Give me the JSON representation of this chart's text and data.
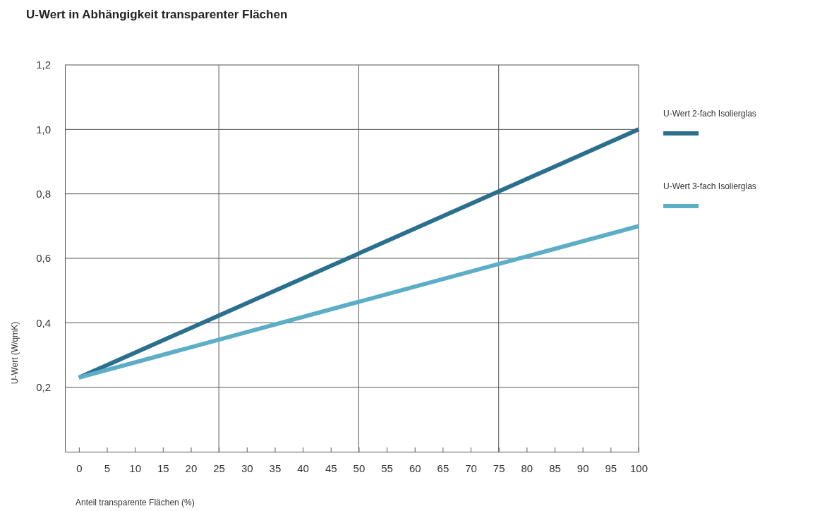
{
  "chart_data": {
    "type": "line",
    "title": "U-Wert in Abhängigkeit transparenter Flächen",
    "xlabel": "Anteil transparente Flächen (%)",
    "ylabel": "U-Wert (W/qmK)",
    "x": [
      0,
      100
    ],
    "series": [
      {
        "name": "U-Wert 2-fach Isolierglas",
        "color": "#2b6f8e",
        "values": [
          0.23,
          1.0
        ]
      },
      {
        "name": "U-Wert 3-fach Isolierglas",
        "color": "#5cadc6",
        "values": [
          0.23,
          0.7
        ]
      }
    ],
    "xlim": [
      -2.5,
      100
    ],
    "xticks": [
      0,
      5,
      10,
      15,
      20,
      25,
      30,
      35,
      40,
      45,
      50,
      55,
      60,
      65,
      70,
      75,
      80,
      85,
      90,
      95,
      100
    ],
    "ylim": [
      0,
      1.2
    ],
    "yticks": [
      {
        "value": 0.2,
        "label": "0,2"
      },
      {
        "value": 0.4,
        "label": "0,4"
      },
      {
        "value": 0.6,
        "label": "0,6"
      },
      {
        "value": 0.8,
        "label": "0,8"
      },
      {
        "value": 1.0,
        "label": "1,0"
      },
      {
        "value": 1.2,
        "label": "1,2"
      }
    ],
    "grid": "y",
    "legend": "right",
    "marker": "none",
    "line_style": "solid",
    "ref_lines": [
      {
        "axis": "x",
        "value": 25,
        "color": "#555555"
      },
      {
        "axis": "x",
        "value": 50,
        "color": "#555555"
      },
      {
        "axis": "x",
        "value": 75,
        "color": "#555555"
      }
    ]
  }
}
